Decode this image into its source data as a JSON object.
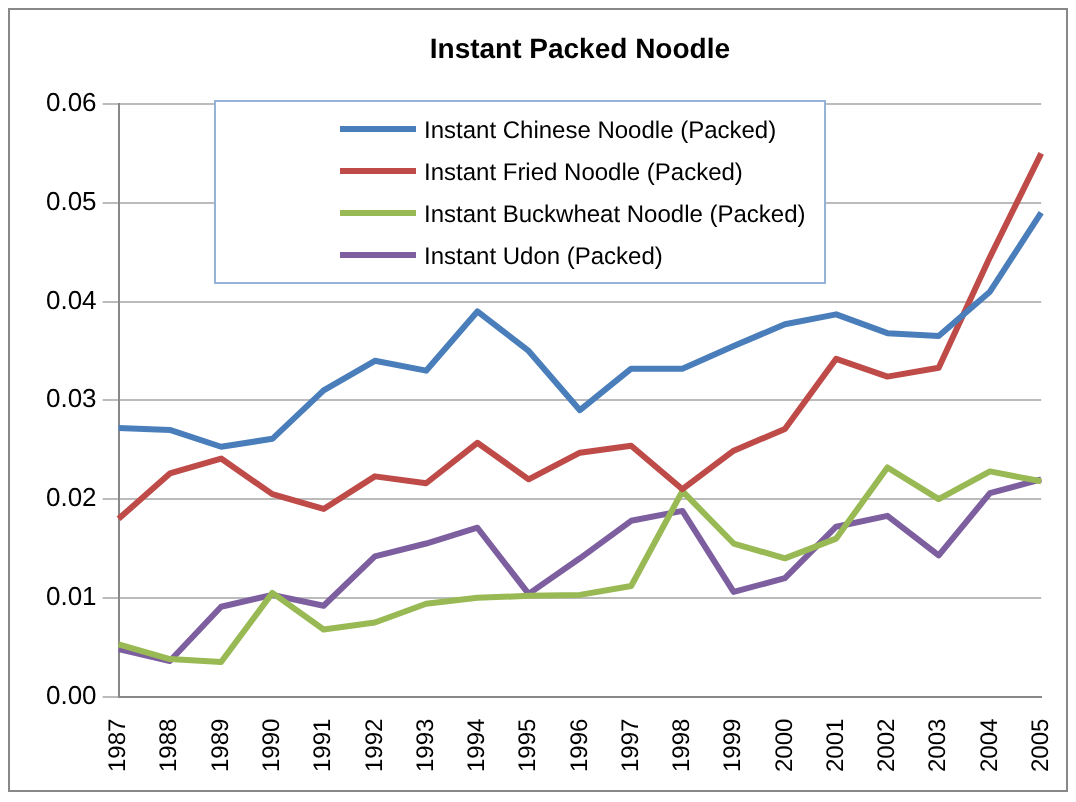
{
  "chart_data": {
    "type": "line",
    "title": "Instant Packed Noodle",
    "categories": [
      "1987",
      "1988",
      "1989",
      "1990",
      "1991",
      "1992",
      "1993",
      "1994",
      "1995",
      "1996",
      "1997",
      "1998",
      "1999",
      "2000",
      "2001",
      "2002",
      "2003",
      "2004",
      "2005"
    ],
    "series": [
      {
        "name": "Instant Chinese Noodle (Packed)",
        "color": "#4a7ebb",
        "values": [
          0.0272,
          0.027,
          0.0253,
          0.0261,
          0.031,
          0.034,
          0.033,
          0.039,
          0.035,
          0.029,
          0.0332,
          0.0332,
          0.0355,
          0.0377,
          0.0387,
          0.0368,
          0.0365,
          0.041,
          0.049
        ]
      },
      {
        "name": "Instant Fried Noodle (Packed)",
        "color": "#be4b48",
        "values": [
          0.018,
          0.0226,
          0.0241,
          0.0205,
          0.019,
          0.0223,
          0.0216,
          0.0257,
          0.022,
          0.0247,
          0.0254,
          0.021,
          0.0249,
          0.0271,
          0.0342,
          0.0324,
          0.0333,
          0.0445,
          0.055
        ]
      },
      {
        "name": "Instant Buckwheat Noodle (Packed)",
        "color": "#98b954",
        "values": [
          0.0053,
          0.0038,
          0.0035,
          0.0105,
          0.0068,
          0.0075,
          0.0094,
          0.01,
          0.0102,
          0.0103,
          0.0112,
          0.0208,
          0.0155,
          0.014,
          0.016,
          0.0232,
          0.02,
          0.0228,
          0.0218
        ]
      },
      {
        "name": "Instant Udon (Packed)",
        "color": "#7d5fa0",
        "values": [
          0.0048,
          0.0036,
          0.0091,
          0.0103,
          0.0092,
          0.0142,
          0.0155,
          0.0171,
          0.0104,
          0.014,
          0.0178,
          0.0188,
          0.0106,
          0.012,
          0.0172,
          0.0183,
          0.0143,
          0.0206,
          0.022
        ]
      }
    ],
    "ylim": [
      0,
      0.06
    ],
    "yticks": [
      {
        "value": 0,
        "label": "0.00"
      },
      {
        "value": 0.01,
        "label": "0.01"
      },
      {
        "value": 0.02,
        "label": "0.02"
      },
      {
        "value": 0.03,
        "label": "0.03"
      },
      {
        "value": 0.04,
        "label": "0.04"
      },
      {
        "value": 0.05,
        "label": "0.05"
      },
      {
        "value": 0.06,
        "label": "0.06"
      }
    ],
    "grid": "y",
    "legend": "top left",
    "marker": "none",
    "line_style": "solid"
  }
}
